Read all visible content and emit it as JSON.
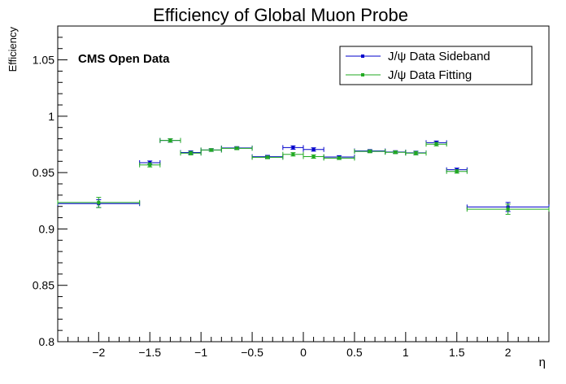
{
  "chart_data": {
    "type": "scatter",
    "title": "Efficiency of Global Muon Probe",
    "xlabel": "η",
    "ylabel": "Efficiency",
    "annotation": "CMS Open Data",
    "xlim": [
      -2.4,
      2.4
    ],
    "ylim": [
      0.8,
      1.08
    ],
    "x_ticks": [
      -2,
      -1.5,
      -1,
      -0.5,
      0,
      0.5,
      1,
      1.5,
      2
    ],
    "x_tick_labels": [
      "−2",
      "−1.5",
      "−1",
      "−0.5",
      "0",
      "0.5",
      "1",
      "1.5",
      "2"
    ],
    "y_ticks": [
      0.8,
      0.85,
      0.9,
      0.95,
      1,
      1.05
    ],
    "y_tick_labels": [
      "0.8",
      "0.85",
      "0.9",
      "0.95",
      "1",
      "1.05"
    ],
    "grid": false,
    "legend_position": "top-right",
    "series": [
      {
        "name": "J/ψ Data Sideband",
        "color": "#0000cc",
        "points": [
          {
            "x": -2.0,
            "xerr": 0.4,
            "y": 0.9225,
            "yerr": 0.0035
          },
          {
            "x": -1.5,
            "xerr": 0.1,
            "y": 0.9588,
            "yerr": 0.0015
          },
          {
            "x": -1.3,
            "xerr": 0.1,
            "y": 0.9785,
            "yerr": 0.0015
          },
          {
            "x": -1.1,
            "xerr": 0.1,
            "y": 0.9678,
            "yerr": 0.0015
          },
          {
            "x": -0.9,
            "xerr": 0.1,
            "y": 0.97,
            "yerr": 0.0012
          },
          {
            "x": -0.65,
            "xerr": 0.15,
            "y": 0.9718,
            "yerr": 0.0012
          },
          {
            "x": -0.35,
            "xerr": 0.15,
            "y": 0.9641,
            "yerr": 0.0012
          },
          {
            "x": -0.1,
            "xerr": 0.1,
            "y": 0.9722,
            "yerr": 0.0015
          },
          {
            "x": 0.1,
            "xerr": 0.1,
            "y": 0.9705,
            "yerr": 0.0015
          },
          {
            "x": 0.35,
            "xerr": 0.15,
            "y": 0.9638,
            "yerr": 0.0012
          },
          {
            "x": 0.65,
            "xerr": 0.15,
            "y": 0.9692,
            "yerr": 0.0012
          },
          {
            "x": 0.9,
            "xerr": 0.1,
            "y": 0.9682,
            "yerr": 0.0012
          },
          {
            "x": 1.1,
            "xerr": 0.1,
            "y": 0.9675,
            "yerr": 0.0015
          },
          {
            "x": 1.3,
            "xerr": 0.1,
            "y": 0.9765,
            "yerr": 0.0015
          },
          {
            "x": 1.5,
            "xerr": 0.1,
            "y": 0.9525,
            "yerr": 0.0015
          },
          {
            "x": 2.0,
            "xerr": 0.4,
            "y": 0.9195,
            "yerr": 0.004
          }
        ]
      },
      {
        "name": "J/ψ Data Fitting",
        "color": "#22aa22",
        "points": [
          {
            "x": -2.0,
            "xerr": 0.4,
            "y": 0.9235,
            "yerr": 0.0045
          },
          {
            "x": -1.5,
            "xerr": 0.1,
            "y": 0.9568,
            "yerr": 0.0018
          },
          {
            "x": -1.3,
            "xerr": 0.1,
            "y": 0.9785,
            "yerr": 0.0015
          },
          {
            "x": -1.1,
            "xerr": 0.1,
            "y": 0.9672,
            "yerr": 0.0015
          },
          {
            "x": -0.9,
            "xerr": 0.1,
            "y": 0.97,
            "yerr": 0.0012
          },
          {
            "x": -0.65,
            "xerr": 0.15,
            "y": 0.9715,
            "yerr": 0.0012
          },
          {
            "x": -0.35,
            "xerr": 0.15,
            "y": 0.9635,
            "yerr": 0.0012
          },
          {
            "x": -0.1,
            "xerr": 0.1,
            "y": 0.9662,
            "yerr": 0.0015
          },
          {
            "x": 0.1,
            "xerr": 0.1,
            "y": 0.9642,
            "yerr": 0.0015
          },
          {
            "x": 0.35,
            "xerr": 0.15,
            "y": 0.9628,
            "yerr": 0.0012
          },
          {
            "x": 0.65,
            "xerr": 0.15,
            "y": 0.9688,
            "yerr": 0.0012
          },
          {
            "x": 0.9,
            "xerr": 0.1,
            "y": 0.968,
            "yerr": 0.0012
          },
          {
            "x": 1.1,
            "xerr": 0.1,
            "y": 0.9672,
            "yerr": 0.0015
          },
          {
            "x": 1.3,
            "xerr": 0.1,
            "y": 0.9752,
            "yerr": 0.0015
          },
          {
            "x": 1.5,
            "xerr": 0.1,
            "y": 0.951,
            "yerr": 0.0015
          },
          {
            "x": 2.0,
            "xerr": 0.4,
            "y": 0.9175,
            "yerr": 0.0045
          }
        ]
      }
    ]
  }
}
